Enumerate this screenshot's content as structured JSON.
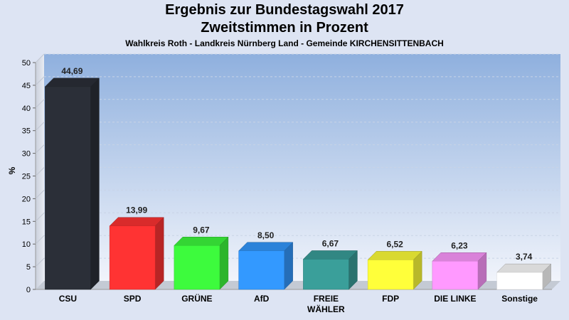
{
  "header": {
    "title_line1": "Ergebnis zur Bundestagswahl 2017",
    "title_line2": "Zweitstimmen in Prozent",
    "subtitle": "Wahlkreis Roth - Landkreis Nürnberg Land - Gemeinde KIRCHENSITTENBACH"
  },
  "chart_data": {
    "type": "bar",
    "title": "Ergebnis zur Bundestagswahl 2017 Zweitstimmen in Prozent",
    "subtitle": "Wahlkreis Roth - Landkreis Nürnberg Land - Gemeinde KIRCHENSITTENBACH",
    "xlabel": "",
    "ylabel": "%",
    "ylim": [
      0,
      50
    ],
    "yticks": [
      0,
      5,
      10,
      15,
      20,
      25,
      30,
      35,
      40,
      45,
      50
    ],
    "grid": true,
    "legend": "none",
    "categories": [
      "CSU",
      "SPD",
      "GRÜNE",
      "AfD",
      "FREIE WÄHLER",
      "FDP",
      "DIE LINKE",
      "Sonstige"
    ],
    "category_lines": [
      [
        "CSU"
      ],
      [
        "SPD"
      ],
      [
        "GRÜNE"
      ],
      [
        "AfD"
      ],
      [
        "FREIE",
        "WÄHLER"
      ],
      [
        "FDP"
      ],
      [
        "DIE LINKE"
      ],
      [
        "Sonstige"
      ]
    ],
    "values": [
      44.69,
      13.99,
      9.67,
      8.5,
      6.67,
      6.52,
      6.23,
      3.74
    ],
    "value_labels": [
      "44,69",
      "13,99",
      "9,67",
      "8,50",
      "6,67",
      "6,52",
      "6,23",
      "3,74"
    ],
    "colors": [
      "#2b2f38",
      "#ff3333",
      "#3dfb3d",
      "#3399ff",
      "#3a9f9a",
      "#ffff3a",
      "#ff99ff",
      "#ffffff"
    ]
  }
}
